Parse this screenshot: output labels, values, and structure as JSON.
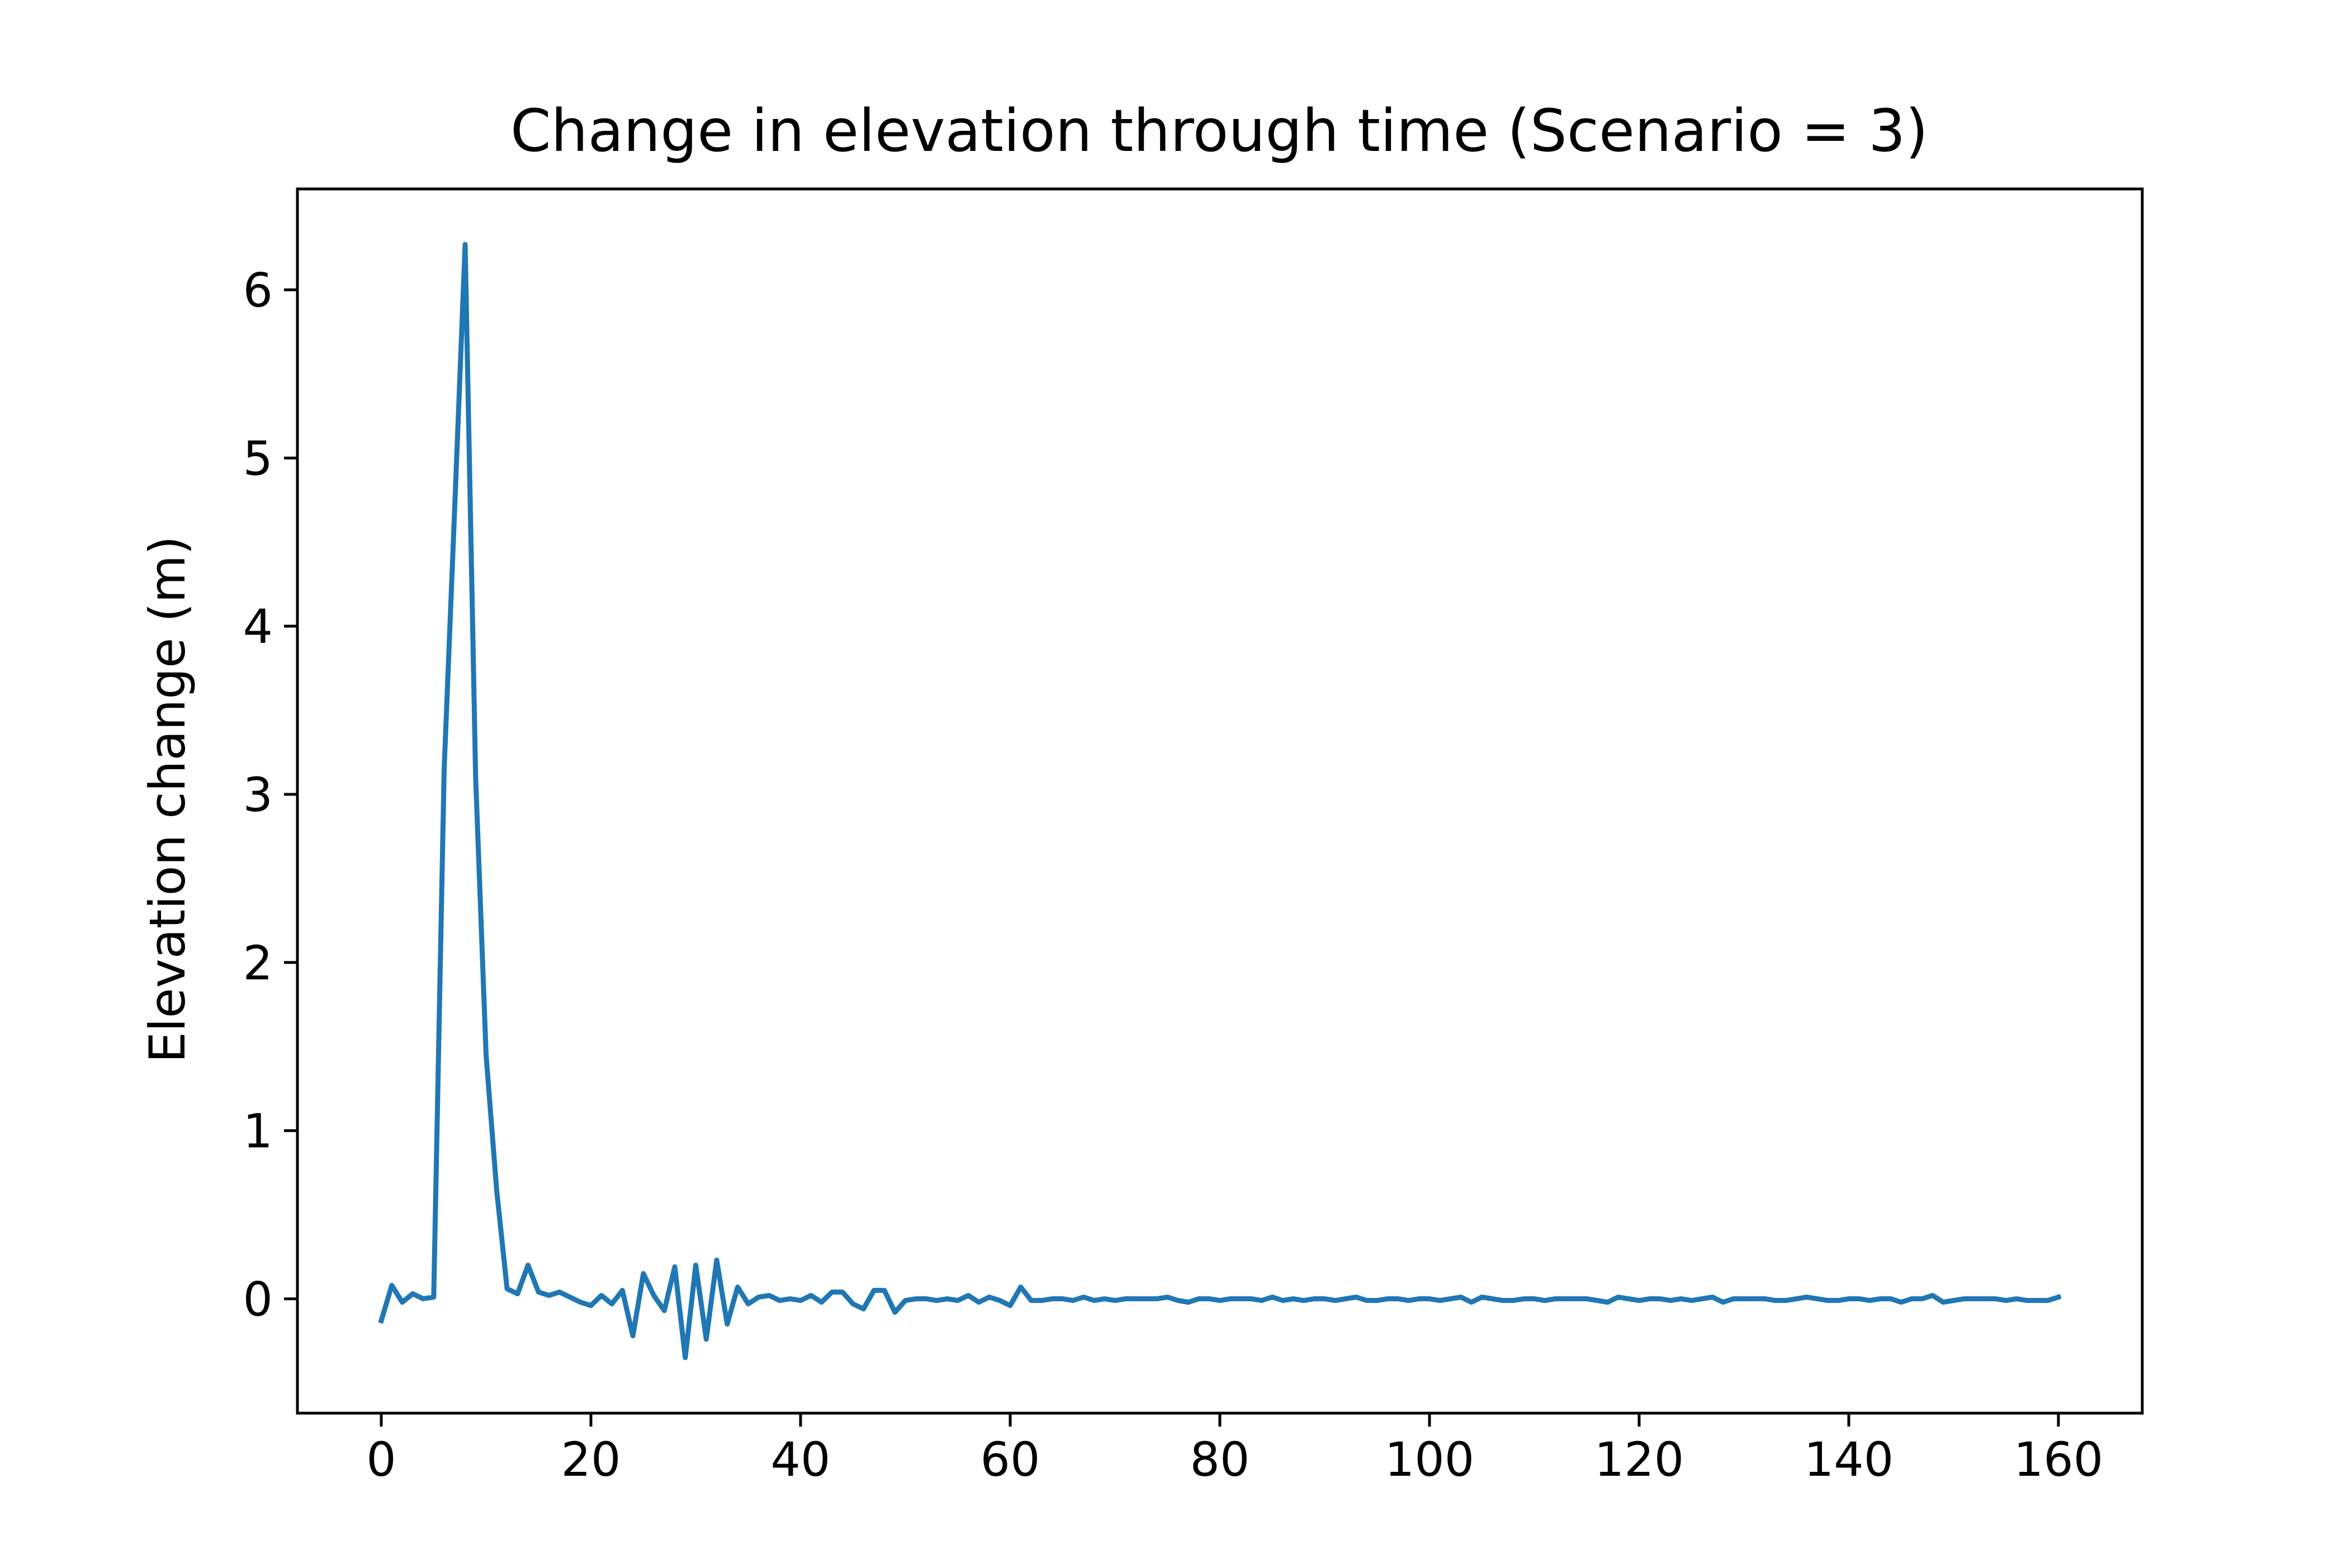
{
  "chart_data": {
    "type": "line",
    "title": "Change in elevation through time (Scenario = 3)",
    "xlabel": "",
    "ylabel": "Elevation change (m)",
    "xlim": [
      -8,
      168
    ],
    "ylim": [
      -0.68,
      6.6
    ],
    "xticks": [
      0,
      20,
      40,
      60,
      80,
      100,
      120,
      140,
      160
    ],
    "yticks": [
      0,
      1,
      2,
      3,
      4,
      5,
      6
    ],
    "grid": false,
    "legend": "none",
    "series": [
      {
        "color": "#1f77b4",
        "x": [
          0,
          1,
          2,
          3,
          4,
          5,
          6,
          7,
          8,
          9,
          10,
          11,
          12,
          13,
          14,
          15,
          16,
          17,
          18,
          19,
          20,
          21,
          22,
          23,
          24,
          25,
          26,
          27,
          28,
          29,
          30,
          31,
          32,
          33,
          34,
          35,
          36,
          37,
          38,
          39,
          40,
          41,
          42,
          43,
          44,
          45,
          46,
          47,
          48,
          49,
          50,
          51,
          52,
          53,
          54,
          55,
          56,
          57,
          58,
          59,
          60,
          61,
          62,
          63,
          64,
          65,
          66,
          67,
          68,
          69,
          70,
          71,
          72,
          73,
          74,
          75,
          76,
          77,
          78,
          79,
          80,
          81,
          82,
          83,
          84,
          85,
          86,
          87,
          88,
          89,
          90,
          91,
          92,
          93,
          94,
          95,
          96,
          97,
          98,
          99,
          100,
          101,
          102,
          103,
          104,
          105,
          106,
          107,
          108,
          109,
          110,
          111,
          112,
          113,
          114,
          115,
          116,
          117,
          118,
          119,
          120,
          121,
          122,
          123,
          124,
          125,
          126,
          127,
          128,
          129,
          130,
          131,
          132,
          133,
          134,
          135,
          136,
          137,
          138,
          139,
          140,
          141,
          142,
          143,
          144,
          145,
          146,
          147,
          148,
          149,
          150,
          151,
          152,
          153,
          154,
          155,
          156,
          157,
          158,
          159,
          160
        ],
        "values": [
          -0.13,
          0.08,
          -0.02,
          0.03,
          0.0,
          0.01,
          3.15,
          4.7,
          6.27,
          3.1,
          1.45,
          0.65,
          0.06,
          0.03,
          0.2,
          0.04,
          0.02,
          0.04,
          0.01,
          -0.02,
          -0.04,
          0.02,
          -0.03,
          0.05,
          -0.22,
          0.15,
          0.02,
          -0.07,
          0.19,
          -0.35,
          0.2,
          -0.24,
          0.23,
          -0.15,
          0.07,
          -0.03,
          0.01,
          0.02,
          -0.01,
          0.0,
          -0.01,
          0.02,
          -0.02,
          0.04,
          0.04,
          -0.03,
          -0.06,
          0.05,
          0.05,
          -0.08,
          -0.01,
          0.0,
          0.0,
          -0.01,
          0.0,
          -0.01,
          0.02,
          -0.02,
          0.01,
          -0.01,
          -0.04,
          0.07,
          -0.01,
          -0.01,
          0.0,
          0.0,
          -0.01,
          0.01,
          -0.01,
          0.0,
          -0.01,
          0.0,
          0.0,
          0.0,
          0.0,
          0.01,
          -0.01,
          -0.02,
          0.0,
          0.0,
          -0.01,
          0.0,
          0.0,
          0.0,
          -0.01,
          0.01,
          -0.01,
          0.0,
          -0.01,
          0.0,
          0.0,
          -0.01,
          0.0,
          0.01,
          -0.01,
          -0.01,
          0.0,
          0.0,
          -0.01,
          0.0,
          0.0,
          -0.01,
          0.0,
          0.01,
          -0.02,
          0.01,
          0.0,
          -0.01,
          -0.01,
          0.0,
          0.0,
          -0.01,
          0.0,
          0.0,
          0.0,
          0.0,
          -0.01,
          -0.02,
          0.01,
          0.0,
          -0.01,
          0.0,
          0.0,
          -0.01,
          0.0,
          -0.01,
          0.0,
          0.01,
          -0.02,
          0.0,
          0.0,
          0.0,
          0.0,
          -0.01,
          -0.01,
          0.0,
          0.01,
          0.0,
          -0.01,
          -0.01,
          0.0,
          0.0,
          -0.01,
          0.0,
          0.0,
          -0.02,
          0.0,
          0.0,
          0.02,
          -0.02,
          -0.01,
          0.0,
          0.0,
          0.0,
          0.0,
          -0.01,
          0.0,
          -0.01,
          -0.01,
          -0.01,
          0.01
        ]
      }
    ]
  }
}
